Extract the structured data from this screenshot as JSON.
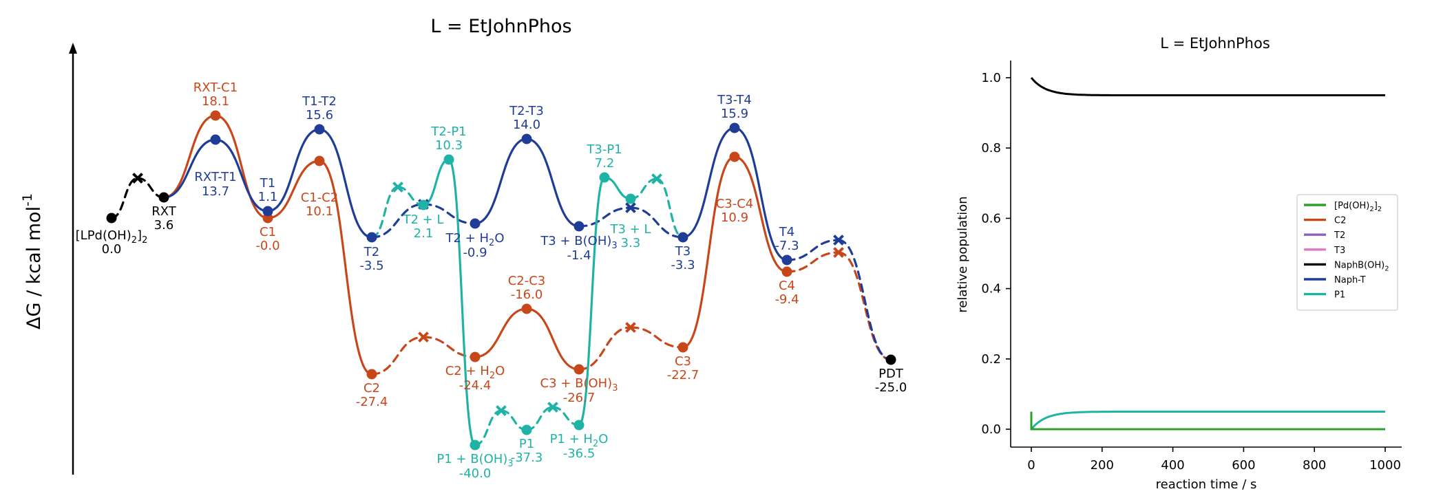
{
  "colors": {
    "black": "#000000",
    "orange": "#c8471a",
    "blue": "#1f3c96",
    "teal": "#1fb3a6",
    "green": "#2ca02c",
    "purple": "#8c5fc8",
    "pink": "#e377c2"
  },
  "chart_data": [
    {
      "type": "line",
      "title": "L = EtJohnPhos",
      "ylabel": "ΔG / kcal mol",
      "ylabel_sup": "-1",
      "grid": false,
      "states": [
        {
          "id": "LPd",
          "label_parts": [
            [
              "[LPd(OH)",
              ""
            ],
            [
              "2",
              "sub"
            ],
            [
              "]",
              ""
            ],
            [
              "2",
              "sub"
            ]
          ],
          "value": "0.0",
          "color": "black"
        },
        {
          "id": "RXT",
          "label": "RXT",
          "value": "3.6",
          "color": "black"
        },
        {
          "id": "RXT-C1",
          "label": "RXT-C1",
          "value": "18.1",
          "color": "orange"
        },
        {
          "id": "RXT-T1",
          "label": "RXT-T1",
          "value": "13.7",
          "color": "blue"
        },
        {
          "id": "T1",
          "label": "T1",
          "value": "1.1",
          "color": "blue"
        },
        {
          "id": "C1",
          "label": "C1",
          "value": "-0.0",
          "color": "orange"
        },
        {
          "id": "T1-T2",
          "label": "T1-T2",
          "value": "15.6",
          "color": "blue"
        },
        {
          "id": "C1-C2",
          "label": "C1-C2",
          "value": "10.1",
          "color": "orange"
        },
        {
          "id": "T2",
          "label": "T2",
          "value": "-3.5",
          "color": "blue"
        },
        {
          "id": "C2",
          "label": "C2",
          "value": "-27.4",
          "color": "orange"
        },
        {
          "id": "T2L",
          "label": "T2 + L",
          "value": "2.1",
          "color": "teal"
        },
        {
          "id": "T2-P1",
          "label": "T2-P1",
          "value": "10.3",
          "color": "teal"
        },
        {
          "id": "T2H2O",
          "label_parts": [
            [
              "T2 + H",
              ""
            ],
            [
              "2",
              "sub"
            ],
            [
              "O",
              ""
            ]
          ],
          "value": "-0.9",
          "color": "blue"
        },
        {
          "id": "C2H2O",
          "label_parts": [
            [
              "C2 + H",
              ""
            ],
            [
              "2",
              "sub"
            ],
            [
              "O",
              ""
            ]
          ],
          "value": "-24.4",
          "color": "orange"
        },
        {
          "id": "P1BOH",
          "label_parts": [
            [
              "P1 + B(OH)",
              ""
            ],
            [
              "3",
              "sub"
            ]
          ],
          "value": "-40.0",
          "color": "teal"
        },
        {
          "id": "T2-T3",
          "label": "T2-T3",
          "value": "14.0",
          "color": "blue"
        },
        {
          "id": "C2-C3",
          "label": "C2-C3",
          "value": "-16.0",
          "color": "orange"
        },
        {
          "id": "P1",
          "label": "P1",
          "value": "-37.3",
          "color": "teal"
        },
        {
          "id": "T3BOH",
          "label_parts": [
            [
              "T3 + B(OH)",
              ""
            ],
            [
              "3",
              "sub"
            ]
          ],
          "value": "-1.4",
          "color": "blue"
        },
        {
          "id": "C3BOH",
          "label_parts": [
            [
              "C3 + B(OH)",
              ""
            ],
            [
              "3",
              "sub"
            ]
          ],
          "value": "-26.7",
          "color": "orange"
        },
        {
          "id": "P1H2O",
          "label_parts": [
            [
              "P1 + H",
              ""
            ],
            [
              "2",
              "sub"
            ],
            [
              "O",
              ""
            ]
          ],
          "value": "-36.5",
          "color": "teal"
        },
        {
          "id": "T3-P1",
          "label": "T3-P1",
          "value": "7.2",
          "color": "teal"
        },
        {
          "id": "T3L",
          "label": "T3 + L",
          "value": "3.3",
          "color": "teal"
        },
        {
          "id": "T3",
          "label": "T3",
          "value": "-3.3",
          "color": "blue"
        },
        {
          "id": "C3",
          "label": "C3",
          "value": "-22.7",
          "color": "orange"
        },
        {
          "id": "T3-T4",
          "label": "T3-T4",
          "value": "15.9",
          "color": "blue"
        },
        {
          "id": "C3-C4",
          "label": "C3-C4",
          "value": "10.9",
          "color": "orange"
        },
        {
          "id": "T4",
          "label": "T4",
          "value": "-7.3",
          "color": "blue"
        },
        {
          "id": "C4",
          "label": "C4",
          "value": "-9.4",
          "color": "orange"
        },
        {
          "id": "PDT",
          "label": "PDT",
          "value": "-25.0",
          "color": "black"
        }
      ]
    },
    {
      "type": "line",
      "title": "L = EtJohnPhos",
      "xlabel": "reaction time / s",
      "ylabel": "relative population",
      "xlim": [
        0,
        1000
      ],
      "ylim": [
        0,
        1.0
      ],
      "xticks": [
        "0",
        "200",
        "400",
        "600",
        "800",
        "1000"
      ],
      "yticks": [
        "0.0",
        "0.2",
        "0.4",
        "0.6",
        "0.8",
        "1.0"
      ],
      "legend_position": "right",
      "series": [
        {
          "name_parts": [
            [
              "[Pd(OH)",
              ""
            ],
            [
              "2",
              "sub"
            ],
            [
              "]",
              ""
            ],
            [
              "2",
              "sub"
            ]
          ],
          "color": "green",
          "start": 0.05,
          "end": 0.0
        },
        {
          "name": "C2",
          "color": "orange",
          "start": 0.0,
          "end": 0.0
        },
        {
          "name": "T2",
          "color": "purple",
          "start": 0.0,
          "end": 0.0
        },
        {
          "name": "T3",
          "color": "pink",
          "start": 0.0,
          "end": 0.0
        },
        {
          "name_parts": [
            [
              "NaphB(OH)",
              ""
            ],
            [
              "2",
              "sub"
            ]
          ],
          "color": "black",
          "start": 1.0,
          "end": 0.95
        },
        {
          "name": "Naph-T",
          "color": "blue",
          "start": 0.0,
          "end": 0.0
        },
        {
          "name": "P1",
          "color": "teal",
          "start": 0.0,
          "end": 0.05
        }
      ]
    }
  ]
}
